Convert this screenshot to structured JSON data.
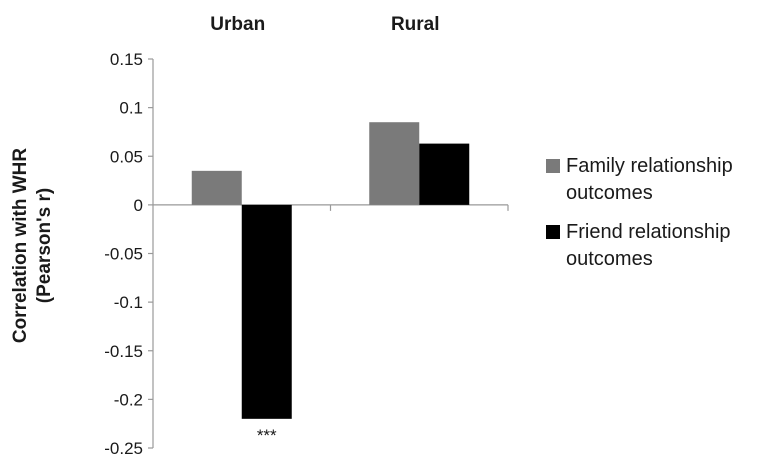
{
  "chart_data": {
    "type": "bar",
    "categories": [
      "Urban",
      "Rural"
    ],
    "series": [
      {
        "name": "Family relationship outcomes",
        "values": [
          0.035,
          0.085
        ],
        "color": "#7a7a7a"
      },
      {
        "name": "Friend relationship outcomes",
        "values": [
          -0.22,
          0.063
        ],
        "color": "#000000"
      }
    ],
    "ylabel_lines": [
      "Correlation with WHR",
      "(Pearson's r)"
    ],
    "xlabel": "",
    "ylim": [
      -0.25,
      0.15
    ],
    "yticks": [
      0.15,
      0.1,
      0.05,
      0,
      -0.05,
      -0.1,
      -0.15,
      -0.2,
      -0.25
    ],
    "ytick_labels": [
      "0.15",
      "0.1",
      "0.05",
      "0",
      "-0.05",
      "-0.1",
      "-0.15",
      "-0.2",
      "-0.25"
    ],
    "legend_position": "right",
    "legend_entries": [
      {
        "lines": [
          "Family relationship",
          "outcomes"
        ],
        "color": "#7a7a7a"
      },
      {
        "lines": [
          "Friend relationship",
          "outcomes"
        ],
        "color": "#000000"
      }
    ],
    "annotations": [
      {
        "category": "Urban",
        "series": "Friend relationship outcomes",
        "text": "***"
      }
    ],
    "grid": false
  }
}
